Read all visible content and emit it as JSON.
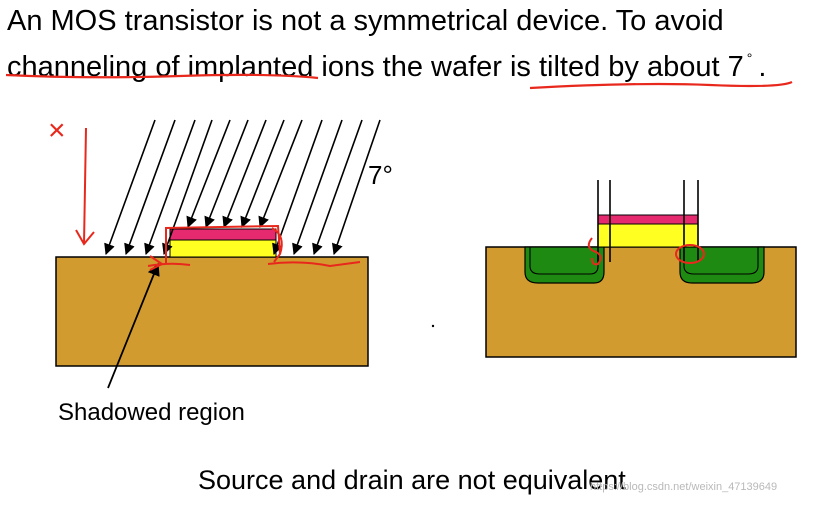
{
  "intro": {
    "line1": "An MOS transistor is not a symmetrical device. To avoid",
    "line2_prefix": "channeling of implanted ions the wafer is tilted by about 7",
    "degree_mark": "°",
    "line2_suffix": "."
  },
  "labels": {
    "angle": "7°",
    "shadowed_region": "Shadowed region",
    "handwritten_x": "×"
  },
  "footer": "Source and drain are not equivalent",
  "watermark": "https://blog.csdn.net/weixin_47139649",
  "colors": {
    "substrate": "#d19b2f",
    "gate_oxide": "#ffff22",
    "gate_poly": "#e52a6f",
    "implant_region": "#1e8a12",
    "annotation_red": "#e8281c",
    "arrow": "#000000"
  },
  "icons": {
    "ion_arrow": "arrow-icon",
    "pointer_arrow": "arrow-icon",
    "ink_annotation": "pen-stroke"
  }
}
